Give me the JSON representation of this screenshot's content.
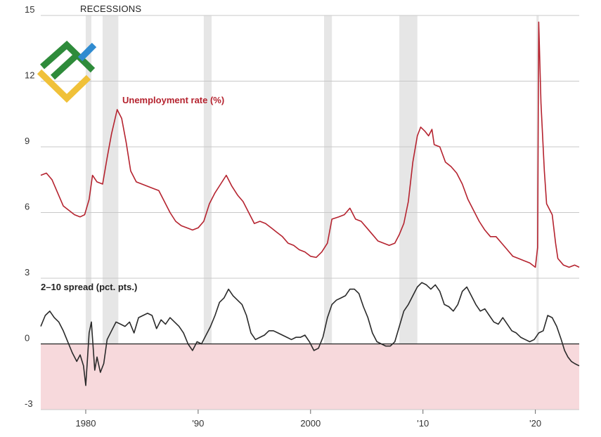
{
  "chart_data": {
    "type": "line",
    "recession_label": "RECESSIONS",
    "recessions": [
      [
        1980.0,
        1980.5
      ],
      [
        1981.5,
        1982.9
      ],
      [
        1990.5,
        1991.2
      ],
      [
        2001.2,
        2001.9
      ],
      [
        2007.9,
        2009.5
      ],
      [
        2020.1,
        2020.3
      ]
    ],
    "y_ticks": [
      {
        "label": "15",
        "value": 15
      },
      {
        "label": "12",
        "value": 12
      },
      {
        "label": "9",
        "value": 9
      },
      {
        "label": "6",
        "value": 6
      },
      {
        "label": "3",
        "value": 3
      },
      {
        "label": "0",
        "value": 0
      },
      {
        "label": "-3",
        "value": -3
      }
    ],
    "x_ticks": [
      {
        "label": "1980",
        "year": 1980
      },
      {
        "label": "'90",
        "year": 1990
      },
      {
        "label": "2000",
        "year": 2000
      },
      {
        "label": "'10",
        "year": 2010
      },
      {
        "label": "'20",
        "year": 2020
      }
    ],
    "xlim": [
      1976,
      2023.9
    ],
    "negative_shade_color": "#f7d9dc",
    "series": [
      {
        "name": "Unemployment rate (%)",
        "color": "#b5232f",
        "ylim": [
          3,
          15
        ],
        "points": [
          [
            1976.0,
            7.7
          ],
          [
            1976.5,
            7.8
          ],
          [
            1977.0,
            7.5
          ],
          [
            1977.5,
            6.9
          ],
          [
            1978.0,
            6.3
          ],
          [
            1978.5,
            6.1
          ],
          [
            1979.0,
            5.9
          ],
          [
            1979.5,
            5.8
          ],
          [
            1979.9,
            5.9
          ],
          [
            1980.3,
            6.6
          ],
          [
            1980.6,
            7.7
          ],
          [
            1981.0,
            7.4
          ],
          [
            1981.5,
            7.3
          ],
          [
            1981.9,
            8.5
          ],
          [
            1982.3,
            9.6
          ],
          [
            1982.8,
            10.7
          ],
          [
            1983.2,
            10.3
          ],
          [
            1983.6,
            9.2
          ],
          [
            1984.0,
            7.9
          ],
          [
            1984.5,
            7.4
          ],
          [
            1985.0,
            7.3
          ],
          [
            1985.5,
            7.2
          ],
          [
            1986.0,
            7.1
          ],
          [
            1986.5,
            7.0
          ],
          [
            1987.0,
            6.5
          ],
          [
            1987.5,
            6.0
          ],
          [
            1988.0,
            5.6
          ],
          [
            1988.5,
            5.4
          ],
          [
            1989.0,
            5.3
          ],
          [
            1989.5,
            5.2
          ],
          [
            1990.0,
            5.3
          ],
          [
            1990.5,
            5.6
          ],
          [
            1991.0,
            6.4
          ],
          [
            1991.5,
            6.9
          ],
          [
            1992.0,
            7.3
          ],
          [
            1992.5,
            7.7
          ],
          [
            1993.0,
            7.2
          ],
          [
            1993.5,
            6.8
          ],
          [
            1994.0,
            6.5
          ],
          [
            1994.5,
            6.0
          ],
          [
            1995.0,
            5.5
          ],
          [
            1995.5,
            5.6
          ],
          [
            1996.0,
            5.5
          ],
          [
            1996.5,
            5.3
          ],
          [
            1997.0,
            5.1
          ],
          [
            1997.5,
            4.9
          ],
          [
            1998.0,
            4.6
          ],
          [
            1998.5,
            4.5
          ],
          [
            1999.0,
            4.3
          ],
          [
            1999.5,
            4.2
          ],
          [
            2000.0,
            4.0
          ],
          [
            2000.5,
            3.95
          ],
          [
            2001.0,
            4.2
          ],
          [
            2001.5,
            4.6
          ],
          [
            2001.9,
            5.7
          ],
          [
            2002.5,
            5.8
          ],
          [
            2003.0,
            5.9
          ],
          [
            2003.5,
            6.2
          ],
          [
            2004.0,
            5.7
          ],
          [
            2004.5,
            5.6
          ],
          [
            2005.0,
            5.3
          ],
          [
            2005.5,
            5.0
          ],
          [
            2006.0,
            4.7
          ],
          [
            2006.5,
            4.6
          ],
          [
            2007.0,
            4.5
          ],
          [
            2007.5,
            4.6
          ],
          [
            2007.9,
            5.0
          ],
          [
            2008.3,
            5.5
          ],
          [
            2008.7,
            6.5
          ],
          [
            2009.1,
            8.3
          ],
          [
            2009.5,
            9.5
          ],
          [
            2009.8,
            9.9
          ],
          [
            2010.2,
            9.7
          ],
          [
            2010.5,
            9.5
          ],
          [
            2010.8,
            9.8
          ],
          [
            2011.0,
            9.1
          ],
          [
            2011.5,
            9.0
          ],
          [
            2012.0,
            8.3
          ],
          [
            2012.5,
            8.1
          ],
          [
            2013.0,
            7.8
          ],
          [
            2013.5,
            7.3
          ],
          [
            2014.0,
            6.6
          ],
          [
            2014.5,
            6.1
          ],
          [
            2015.0,
            5.6
          ],
          [
            2015.5,
            5.2
          ],
          [
            2016.0,
            4.9
          ],
          [
            2016.5,
            4.9
          ],
          [
            2017.0,
            4.6
          ],
          [
            2017.5,
            4.3
          ],
          [
            2018.0,
            4.0
          ],
          [
            2018.5,
            3.9
          ],
          [
            2019.0,
            3.8
          ],
          [
            2019.5,
            3.7
          ],
          [
            2020.0,
            3.5
          ],
          [
            2020.2,
            4.4
          ],
          [
            2020.3,
            14.7
          ],
          [
            2020.5,
            11.0
          ],
          [
            2020.8,
            7.9
          ],
          [
            2021.0,
            6.4
          ],
          [
            2021.5,
            5.9
          ],
          [
            2021.8,
            4.6
          ],
          [
            2022.0,
            3.9
          ],
          [
            2022.5,
            3.6
          ],
          [
            2023.0,
            3.5
          ],
          [
            2023.5,
            3.6
          ],
          [
            2023.9,
            3.5
          ]
        ]
      },
      {
        "name": "2–10 spread (pct. pts.)",
        "color": "#2a2a2a",
        "ylim": [
          -3,
          3
        ],
        "points": [
          [
            1976.0,
            0.8
          ],
          [
            1976.4,
            1.3
          ],
          [
            1976.8,
            1.5
          ],
          [
            1977.2,
            1.2
          ],
          [
            1977.6,
            1.0
          ],
          [
            1978.0,
            0.6
          ],
          [
            1978.4,
            0.1
          ],
          [
            1978.8,
            -0.4
          ],
          [
            1979.2,
            -0.8
          ],
          [
            1979.5,
            -0.5
          ],
          [
            1979.8,
            -1.0
          ],
          [
            1980.0,
            -1.9
          ],
          [
            1980.3,
            0.5
          ],
          [
            1980.5,
            1.0
          ],
          [
            1980.8,
            -1.2
          ],
          [
            1981.0,
            -0.6
          ],
          [
            1981.3,
            -1.3
          ],
          [
            1981.6,
            -0.9
          ],
          [
            1981.9,
            0.2
          ],
          [
            1982.3,
            0.6
          ],
          [
            1982.7,
            1.0
          ],
          [
            1983.1,
            0.9
          ],
          [
            1983.5,
            0.8
          ],
          [
            1983.9,
            1.0
          ],
          [
            1984.3,
            0.5
          ],
          [
            1984.7,
            1.2
          ],
          [
            1985.1,
            1.3
          ],
          [
            1985.5,
            1.4
          ],
          [
            1985.9,
            1.3
          ],
          [
            1986.3,
            0.7
          ],
          [
            1986.7,
            1.1
          ],
          [
            1987.1,
            0.9
          ],
          [
            1987.5,
            1.2
          ],
          [
            1987.9,
            1.0
          ],
          [
            1988.3,
            0.8
          ],
          [
            1988.7,
            0.5
          ],
          [
            1989.1,
            0.0
          ],
          [
            1989.5,
            -0.3
          ],
          [
            1989.9,
            0.1
          ],
          [
            1990.3,
            0.0
          ],
          [
            1990.7,
            0.4
          ],
          [
            1991.1,
            0.8
          ],
          [
            1991.5,
            1.3
          ],
          [
            1991.9,
            1.9
          ],
          [
            1992.3,
            2.1
          ],
          [
            1992.7,
            2.5
          ],
          [
            1993.1,
            2.2
          ],
          [
            1993.5,
            2.0
          ],
          [
            1993.9,
            1.8
          ],
          [
            1994.3,
            1.3
          ],
          [
            1994.7,
            0.5
          ],
          [
            1995.1,
            0.2
          ],
          [
            1995.5,
            0.3
          ],
          [
            1995.9,
            0.4
          ],
          [
            1996.3,
            0.6
          ],
          [
            1996.7,
            0.6
          ],
          [
            1997.1,
            0.5
          ],
          [
            1997.5,
            0.4
          ],
          [
            1997.9,
            0.3
          ],
          [
            1998.3,
            0.2
          ],
          [
            1998.7,
            0.3
          ],
          [
            1999.1,
            0.3
          ],
          [
            1999.5,
            0.4
          ],
          [
            1999.9,
            0.1
          ],
          [
            2000.3,
            -0.3
          ],
          [
            2000.7,
            -0.2
          ],
          [
            2001.1,
            0.3
          ],
          [
            2001.5,
            1.2
          ],
          [
            2001.9,
            1.8
          ],
          [
            2002.3,
            2.0
          ],
          [
            2002.7,
            2.1
          ],
          [
            2003.1,
            2.2
          ],
          [
            2003.5,
            2.5
          ],
          [
            2003.9,
            2.5
          ],
          [
            2004.3,
            2.3
          ],
          [
            2004.7,
            1.7
          ],
          [
            2005.1,
            1.2
          ],
          [
            2005.5,
            0.5
          ],
          [
            2005.9,
            0.1
          ],
          [
            2006.3,
            0.0
          ],
          [
            2006.7,
            -0.1
          ],
          [
            2007.1,
            -0.1
          ],
          [
            2007.5,
            0.1
          ],
          [
            2007.9,
            0.8
          ],
          [
            2008.3,
            1.5
          ],
          [
            2008.7,
            1.8
          ],
          [
            2009.1,
            2.2
          ],
          [
            2009.5,
            2.6
          ],
          [
            2009.9,
            2.8
          ],
          [
            2010.3,
            2.7
          ],
          [
            2010.7,
            2.5
          ],
          [
            2011.1,
            2.7
          ],
          [
            2011.5,
            2.4
          ],
          [
            2011.9,
            1.8
          ],
          [
            2012.3,
            1.7
          ],
          [
            2012.7,
            1.5
          ],
          [
            2013.1,
            1.8
          ],
          [
            2013.5,
            2.4
          ],
          [
            2013.9,
            2.6
          ],
          [
            2014.3,
            2.2
          ],
          [
            2014.7,
            1.8
          ],
          [
            2015.1,
            1.5
          ],
          [
            2015.5,
            1.6
          ],
          [
            2015.9,
            1.3
          ],
          [
            2016.3,
            1.0
          ],
          [
            2016.7,
            0.9
          ],
          [
            2017.1,
            1.2
          ],
          [
            2017.5,
            0.9
          ],
          [
            2017.9,
            0.6
          ],
          [
            2018.3,
            0.5
          ],
          [
            2018.7,
            0.3
          ],
          [
            2019.1,
            0.2
          ],
          [
            2019.5,
            0.1
          ],
          [
            2019.9,
            0.2
          ],
          [
            2020.3,
            0.5
          ],
          [
            2020.7,
            0.6
          ],
          [
            2021.1,
            1.3
          ],
          [
            2021.5,
            1.2
          ],
          [
            2021.9,
            0.8
          ],
          [
            2022.3,
            0.2
          ],
          [
            2022.6,
            -0.3
          ],
          [
            2022.9,
            -0.6
          ],
          [
            2023.2,
            -0.8
          ],
          [
            2023.5,
            -0.9
          ],
          [
            2023.9,
            -1.0
          ]
        ]
      }
    ]
  }
}
